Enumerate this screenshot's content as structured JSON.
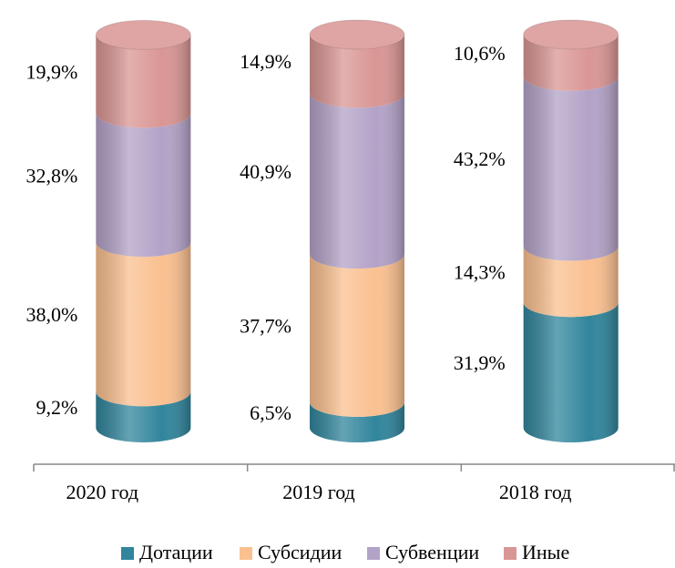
{
  "chart_data": {
    "type": "stacked_cylinder",
    "categories": [
      "2020 год",
      "2019 год",
      "2018 год"
    ],
    "ylim": [
      0,
      100
    ],
    "legend": "bottom",
    "series": [
      {
        "name": "Дотации",
        "color": "#31859c",
        "values": [
          9.2,
          6.5,
          31.9
        ],
        "value_labels": [
          "9,2%",
          "6,5%",
          "31,9%"
        ]
      },
      {
        "name": "Субсидии",
        "color": "#fac090",
        "values": [
          38.0,
          37.7,
          14.3
        ],
        "value_labels": [
          "38,0%",
          "37,7%",
          "14,3%"
        ]
      },
      {
        "name": "Субвенции",
        "color": "#b3a2c7",
        "values": [
          32.8,
          40.9,
          43.2
        ],
        "value_labels": [
          "32,8%",
          "40,9%",
          "43,2%"
        ]
      },
      {
        "name": "Иные",
        "color": "#d99694",
        "values": [
          19.9,
          14.9,
          10.6
        ],
        "value_labels": [
          "19,9%",
          "14,9%",
          "10,6%"
        ]
      }
    ]
  }
}
